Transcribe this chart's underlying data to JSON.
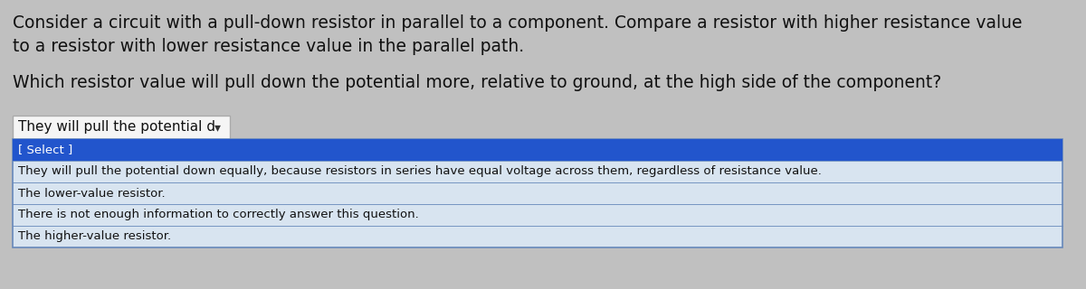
{
  "bg_color": "#c0c0c0",
  "paragraph1_line1": "Consider a circuit with a pull-down resistor in parallel to a component. Compare a resistor with higher resistance value",
  "paragraph1_line2": "to a resistor with lower resistance value in the parallel path.",
  "paragraph2": "Which resistor value will pull down the potential more, relative to ground, at the high side of the component?",
  "dropdown_current": "They will pull the potential d",
  "dropdown_box_color": "#f5f5f5",
  "dropdown_border_color": "#aaaaaa",
  "select_highlight_color": "#2255cc",
  "select_highlight_text": "[ Select ]",
  "select_highlight_text_color": "#ffffff",
  "options": [
    "They will pull the potential down equally, because resistors in series have equal voltage across them, regardless of resistance value.",
    "The lower-value resistor.",
    "There is not enough information to correctly answer this question.",
    "The higher-value resistor."
  ],
  "options_text_color": "#111111",
  "options_bg_color": "#d8e4f0",
  "options_border_color": "#6688bb",
  "text_color": "#111111",
  "font_size_para": 13.5,
  "font_size_dropdown": 11.0,
  "font_size_options": 9.5,
  "font_size_select": 9.5
}
